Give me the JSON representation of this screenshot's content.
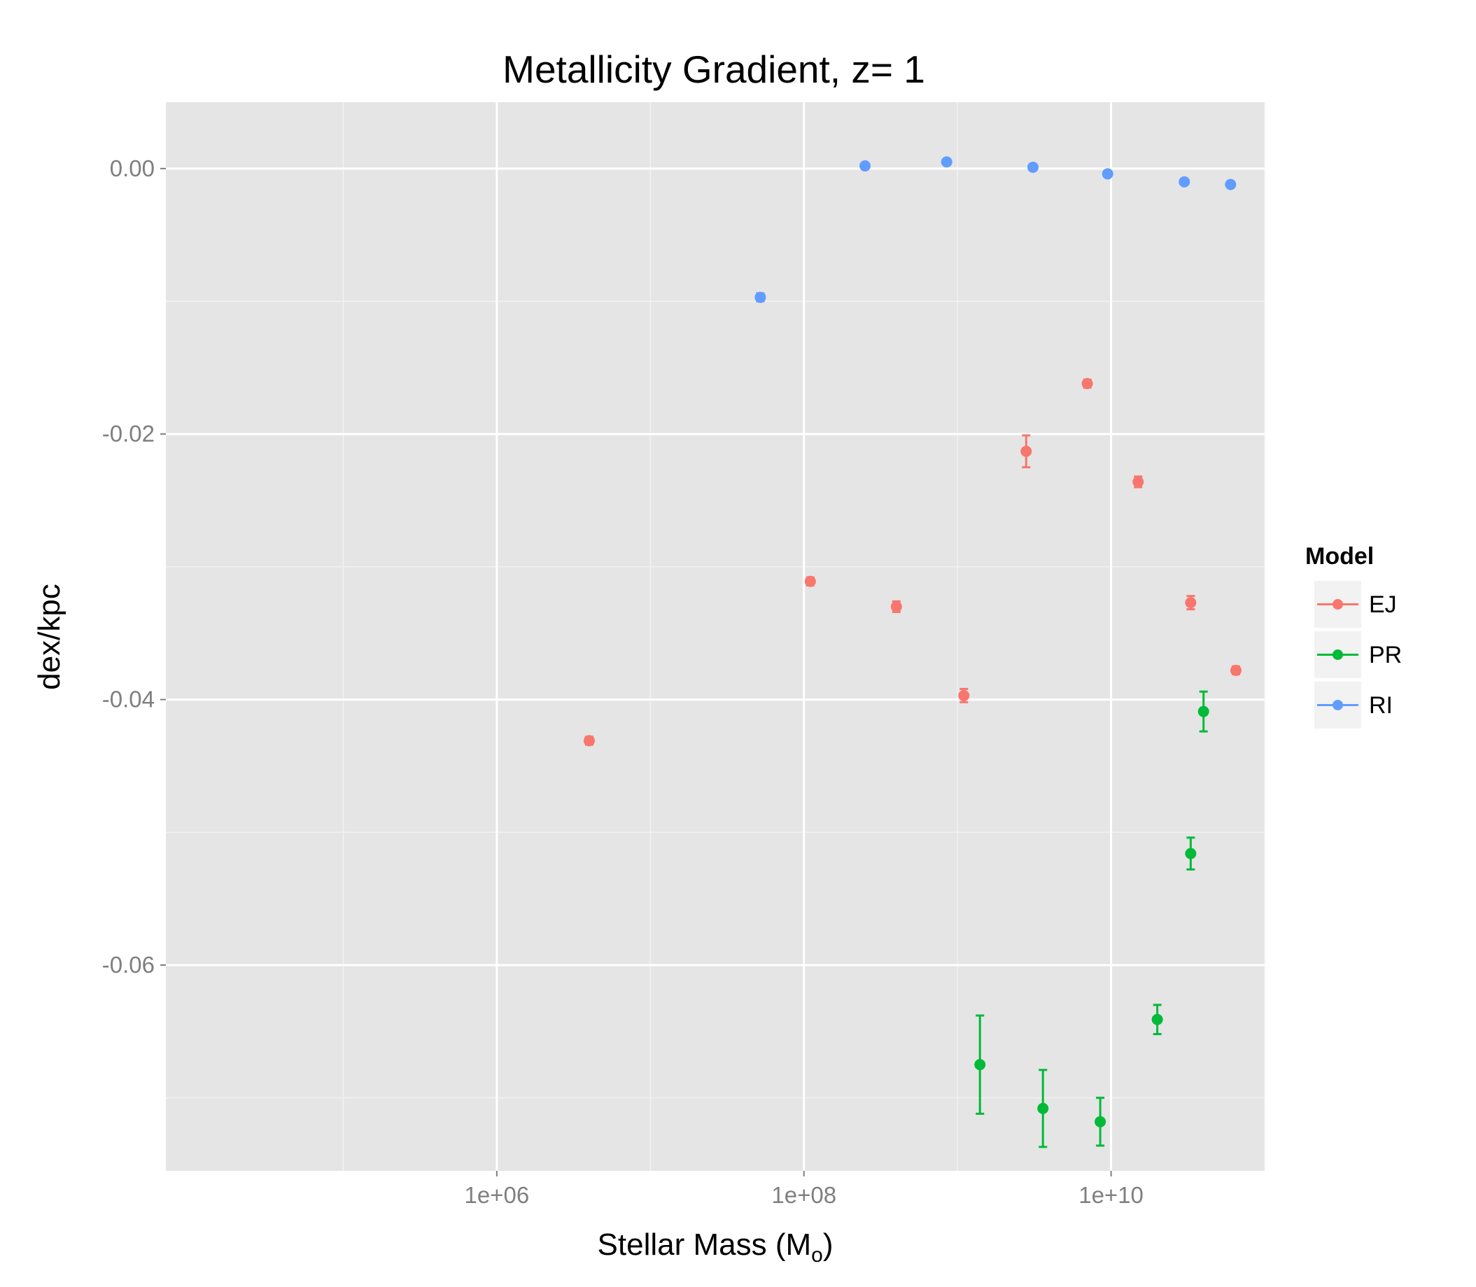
{
  "chart_data": {
    "type": "scatter",
    "title": "Metallicity Gradient, z= 1",
    "xlabel_main": "Stellar Mass (M",
    "xlabel_sub": "o",
    "xlabel_close": ")",
    "ylabel": "dex/kpc",
    "x_scale": "log10",
    "xlim": [
      7000,
      100000000000.0
    ],
    "ylim": [
      -0.0755,
      0.005
    ],
    "x_ticks": [
      {
        "value": 1000000,
        "label": "1e+06"
      },
      {
        "value": 100000000,
        "label": "1e+08"
      },
      {
        "value": 10000000000,
        "label": "1e+10"
      }
    ],
    "y_ticks": [
      {
        "value": 0.0,
        "label": "0.00"
      },
      {
        "value": -0.02,
        "label": "-0.02"
      },
      {
        "value": -0.04,
        "label": "-0.04"
      },
      {
        "value": -0.06,
        "label": "-0.06"
      }
    ],
    "grid": true,
    "legend": {
      "title": "Model",
      "position": "right"
    },
    "series": [
      {
        "name": "EJ",
        "color": "#F8766D",
        "points": [
          {
            "x": 4000000,
            "y": -0.0431,
            "err": 0.0003
          },
          {
            "x": 110000000,
            "y": -0.0311,
            "err": 0.0003
          },
          {
            "x": 400000000,
            "y": -0.033,
            "err": 0.0004
          },
          {
            "x": 1100000000,
            "y": -0.0397,
            "err": 0.0005
          },
          {
            "x": 2800000000,
            "y": -0.0213,
            "err": 0.0012
          },
          {
            "x": 7000000000,
            "y": -0.0162,
            "err": 0.0003
          },
          {
            "x": 15000000000,
            "y": -0.0236,
            "err": 0.0004
          },
          {
            "x": 33000000000,
            "y": -0.0327,
            "err": 0.0005
          },
          {
            "x": 65000000000,
            "y": -0.0378,
            "err": 0.0003
          }
        ]
      },
      {
        "name": "PR",
        "color": "#00BA38",
        "points": [
          {
            "x": 1400000000,
            "y": -0.0675,
            "err": 0.0037
          },
          {
            "x": 3600000000,
            "y": -0.0708,
            "err": 0.0029
          },
          {
            "x": 8500000000,
            "y": -0.0718,
            "err": 0.0018
          },
          {
            "x": 20000000000,
            "y": -0.0641,
            "err": 0.0011
          },
          {
            "x": 33000000000,
            "y": -0.0516,
            "err": 0.0012
          },
          {
            "x": 40000000000,
            "y": -0.0409,
            "err": 0.0015
          }
        ]
      },
      {
        "name": "RI",
        "color": "#619CFF",
        "points": [
          {
            "x": 52000000,
            "y": -0.0097,
            "err": 0.0003
          },
          {
            "x": 250000000,
            "y": 0.0002,
            "err": 0.0002
          },
          {
            "x": 850000000,
            "y": 0.0005,
            "err": 0.0002
          },
          {
            "x": 3100000000,
            "y": 0.0001,
            "err": 0.0002
          },
          {
            "x": 9500000000,
            "y": -0.0004,
            "err": 0.0002
          },
          {
            "x": 30000000000,
            "y": -0.001,
            "err": 0.0002
          },
          {
            "x": 60000000000,
            "y": -0.0012,
            "err": 0.0002
          }
        ]
      }
    ]
  }
}
